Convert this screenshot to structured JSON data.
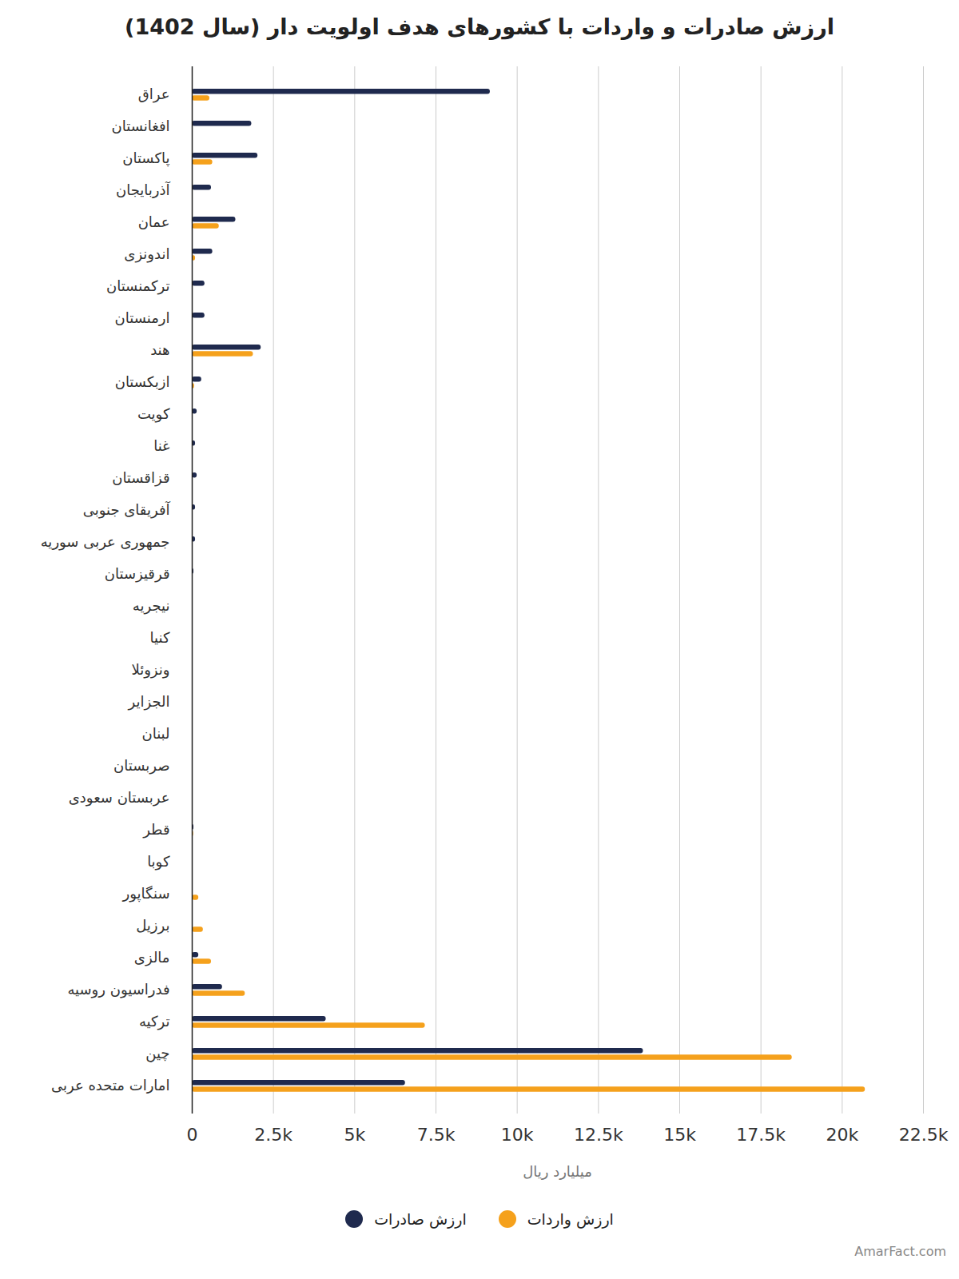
{
  "chart_data": {
    "type": "bar",
    "orientation": "horizontal",
    "title": "ارزش صادرات و واردات با کشورهای هدف اولویت دار (سال 1402)",
    "x_label": "میلیارد ریال",
    "caption": "AmarFact.com",
    "categories": [
      "عراق",
      "افغانستان",
      "پاکستان",
      "آذربایجان",
      "عمان",
      "اندونزی",
      "ترکمنستان",
      "ارمنستان",
      "هند",
      "ازبکستان",
      "کویت",
      "غنا",
      "قزاقستان",
      "آفریقای جنوبی",
      "جمهوری عربی سوریه",
      "قرقیزستان",
      "نیجریه",
      "کنیا",
      "ونزوئلا",
      "الجزایر",
      "لبنان",
      "صربستان",
      "عربستان سعودی",
      "قطر",
      "کوبا",
      "سنگاپور",
      "برزیل",
      "مالزی",
      "فدراسیون روسیه",
      "ترکیه",
      "چین",
      "امارات متحده عربی"
    ],
    "series": [
      {
        "name": "ارزش صادرات",
        "color": "#1f2a4e",
        "values": [
          9170,
          1830,
          2020,
          590,
          1340,
          630,
          390,
          390,
          2120,
          290,
          150,
          100,
          150,
          100,
          100,
          50,
          0,
          0,
          0,
          0,
          0,
          0,
          0,
          50,
          0,
          0,
          0,
          200,
          930,
          4120,
          13880,
          6560
        ]
      },
      {
        "name": "ارزش واردات",
        "color": "#f5a11c",
        "values": [
          540,
          0,
          630,
          0,
          830,
          100,
          0,
          0,
          1880,
          70,
          0,
          0,
          0,
          0,
          0,
          0,
          0,
          0,
          0,
          0,
          0,
          0,
          0,
          40,
          0,
          200,
          340,
          590,
          1630,
          7170,
          18460,
          20710
        ]
      }
    ],
    "xlim": [
      0,
      22500
    ],
    "xticks": [
      0,
      {
        "value": 2500,
        "label": "2.5k"
      },
      {
        "value": 5000,
        "label": "5k"
      },
      {
        "value": 7500,
        "label": "7.5k"
      },
      {
        "value": 10000,
        "label": "10k"
      },
      {
        "value": 12500,
        "label": "12.5k"
      },
      {
        "value": 15000,
        "label": "15k"
      },
      {
        "value": 17500,
        "label": "17.5k"
      },
      {
        "value": 20000,
        "label": "20k"
      },
      {
        "value": 22500,
        "label": "22.5k"
      }
    ],
    "grid": true,
    "legend": "bottom"
  }
}
